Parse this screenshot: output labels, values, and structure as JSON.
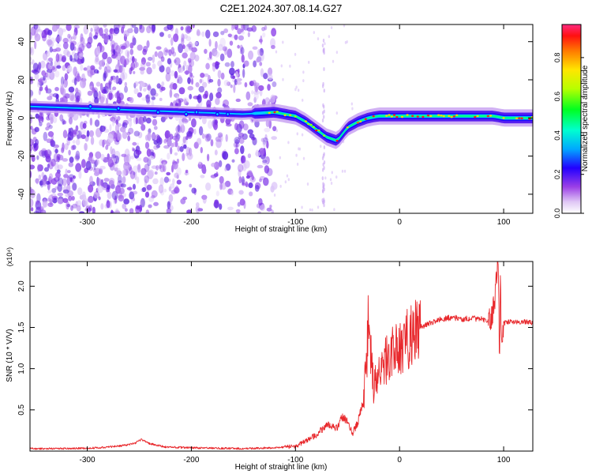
{
  "figure_title": "C2E1.2024.307.08.14.G27",
  "chart_data": [
    {
      "type": "heatmap",
      "name": "spectrogram",
      "xlabel": "Height of straight line (km)",
      "ylabel": "Frequency (Hz)",
      "xlim": [
        -355,
        128
      ],
      "ylim": [
        -50,
        49
      ],
      "xticks": [
        "-300",
        "-200",
        "-100",
        "0",
        "100"
      ],
      "xtick_values": [
        -300,
        -200,
        -100,
        0,
        100
      ],
      "yticks": [
        "-40",
        "-20",
        "0",
        "20",
        "40"
      ],
      "ytick_values": [
        -40,
        -20,
        0,
        20,
        40
      ],
      "colorbar": {
        "label": "Normalized spectral amplitude",
        "range": [
          0,
          0.97
        ],
        "ticks": [
          "0.0",
          "0.2",
          "0.4",
          "0.6",
          "0.8"
        ],
        "tick_values": [
          0,
          0.2,
          0.4,
          0.6,
          0.8
        ]
      },
      "ridge": {
        "x": [
          -355,
          -300,
          -250,
          -200,
          -150,
          -120,
          -100,
          -90,
          -80,
          -70,
          -60,
          -50,
          -40,
          -30,
          -20,
          -10,
          0,
          20,
          50,
          80,
          90,
          100,
          128
        ],
        "frequency": [
          6,
          5,
          4,
          3,
          2,
          3,
          1,
          -2,
          -6,
          -10,
          -12,
          -5,
          -2,
          0,
          1,
          1,
          1,
          1,
          1,
          1,
          1,
          0,
          0
        ]
      }
    },
    {
      "type": "line",
      "name": "snr",
      "xlabel": "Height of straight line (km)",
      "ylabel": "SNR (10 * V/V)",
      "multiplier": "(x10⁴)",
      "xlim": [
        -355,
        128
      ],
      "ylim": [
        0,
        2.3
      ],
      "xticks": [
        "-300",
        "-200",
        "-100",
        "0",
        "100"
      ],
      "xtick_values": [
        -300,
        -200,
        -100,
        0,
        100
      ],
      "yticks": [
        "0.5",
        "1.0",
        "1.5",
        "2.0"
      ],
      "ytick_values": [
        0.5,
        1.0,
        1.5,
        2.0
      ],
      "line_color": "#e8272b",
      "series": [
        {
          "x": [
            -355,
            -320,
            -290,
            -270,
            -255,
            -248,
            -240,
            -225,
            -200,
            -150,
            -120,
            -100,
            -90,
            -80,
            -70,
            -60,
            -55,
            -50,
            -45,
            -40,
            -35,
            -32,
            -30,
            -25,
            -20,
            -15,
            -10,
            -5,
            0,
            5,
            10,
            20,
            30,
            40,
            50,
            60,
            70,
            80,
            85,
            90,
            92,
            95,
            96,
            97,
            98,
            100,
            105,
            110,
            120,
            128
          ],
          "y": [
            0.03,
            0.03,
            0.04,
            0.06,
            0.09,
            0.14,
            0.09,
            0.05,
            0.04,
            0.03,
            0.04,
            0.06,
            0.12,
            0.2,
            0.32,
            0.28,
            0.42,
            0.35,
            0.22,
            0.35,
            0.6,
            1.0,
            1.6,
            0.75,
            0.95,
            1.05,
            1.15,
            1.2,
            1.25,
            1.3,
            1.4,
            1.5,
            1.55,
            1.6,
            1.62,
            1.6,
            1.61,
            1.6,
            1.58,
            1.7,
            1.9,
            2.3,
            1.0,
            2.2,
            1.3,
            1.55,
            1.57,
            1.56,
            1.57,
            1.56
          ]
        }
      ]
    }
  ]
}
